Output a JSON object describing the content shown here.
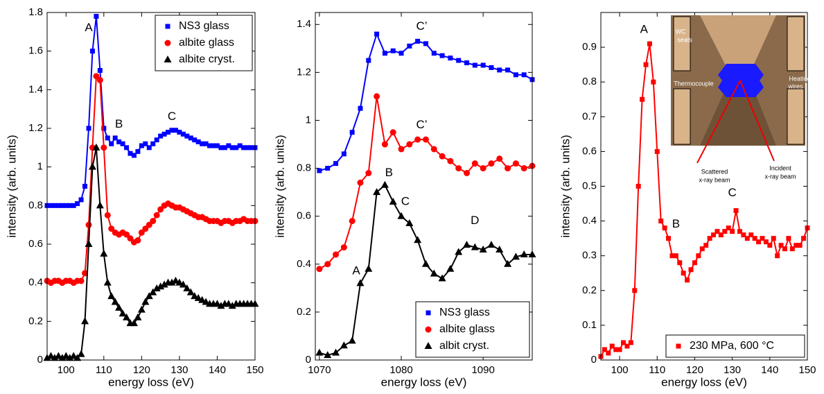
{
  "chart_data": [
    {
      "type": "line",
      "xlabel": "energy loss (eV)",
      "ylabel": "intensity (arb. units)",
      "xlim": [
        95,
        150
      ],
      "xticks": [
        100,
        110,
        120,
        130,
        140,
        150
      ],
      "ylim": [
        0,
        1.8
      ],
      "yticks": [
        0,
        0.2,
        0.4,
        0.6,
        0.8,
        1,
        1.2,
        1.4,
        1.6,
        1.8
      ],
      "legend": "upper right",
      "annotations": [
        "A",
        "B",
        "C"
      ],
      "x": [
        95,
        96,
        97,
        98,
        99,
        100,
        101,
        102,
        103,
        104,
        105,
        106,
        107,
        108,
        109,
        110,
        111,
        112,
        113,
        114,
        115,
        116,
        117,
        118,
        119,
        120,
        121,
        122,
        123,
        124,
        125,
        126,
        127,
        128,
        129,
        130,
        131,
        132,
        133,
        134,
        135,
        136,
        137,
        138,
        139,
        140,
        141,
        142,
        143,
        144,
        145,
        146,
        147,
        148,
        149,
        150
      ],
      "series": [
        {
          "name": "NS3 glass",
          "color": "#0000ff",
          "marker": "square",
          "values": [
            0.8,
            0.8,
            0.8,
            0.8,
            0.8,
            0.8,
            0.8,
            0.8,
            0.81,
            0.83,
            0.9,
            1.2,
            1.6,
            1.78,
            1.5,
            1.2,
            1.15,
            1.12,
            1.15,
            1.13,
            1.12,
            1.1,
            1.07,
            1.06,
            1.08,
            1.11,
            1.12,
            1.1,
            1.12,
            1.14,
            1.16,
            1.17,
            1.18,
            1.19,
            1.19,
            1.18,
            1.17,
            1.16,
            1.15,
            1.14,
            1.13,
            1.12,
            1.12,
            1.11,
            1.11,
            1.11,
            1.1,
            1.1,
            1.11,
            1.1,
            1.1,
            1.11,
            1.1,
            1.1,
            1.1,
            1.1
          ]
        },
        {
          "name": "albite glass",
          "color": "#ff0000",
          "marker": "circle",
          "values": [
            0.41,
            0.4,
            0.41,
            0.41,
            0.4,
            0.41,
            0.41,
            0.4,
            0.41,
            0.41,
            0.45,
            0.7,
            1.1,
            1.47,
            1.45,
            1.1,
            0.75,
            0.68,
            0.66,
            0.65,
            0.66,
            0.65,
            0.63,
            0.61,
            0.62,
            0.66,
            0.68,
            0.7,
            0.72,
            0.75,
            0.78,
            0.8,
            0.81,
            0.8,
            0.79,
            0.79,
            0.78,
            0.77,
            0.76,
            0.75,
            0.74,
            0.74,
            0.73,
            0.72,
            0.72,
            0.72,
            0.71,
            0.72,
            0.72,
            0.71,
            0.72,
            0.72,
            0.73,
            0.72,
            0.72,
            0.72
          ]
        },
        {
          "name": "albite cryst.",
          "color": "#000000",
          "marker": "triangle",
          "values": [
            0.01,
            0.02,
            0.01,
            0.02,
            0.01,
            0.02,
            0.01,
            0.02,
            0.01,
            0.03,
            0.2,
            0.6,
            1.0,
            1.1,
            0.8,
            0.55,
            0.4,
            0.33,
            0.3,
            0.27,
            0.24,
            0.22,
            0.19,
            0.19,
            0.22,
            0.26,
            0.3,
            0.33,
            0.35,
            0.37,
            0.38,
            0.39,
            0.4,
            0.4,
            0.41,
            0.4,
            0.39,
            0.37,
            0.35,
            0.33,
            0.32,
            0.31,
            0.3,
            0.29,
            0.29,
            0.29,
            0.28,
            0.29,
            0.29,
            0.28,
            0.29,
            0.29,
            0.29,
            0.29,
            0.29,
            0.29
          ]
        }
      ]
    },
    {
      "type": "line",
      "xlabel": "energy loss (eV)",
      "ylabel": "intensity (arb. units)",
      "xlim": [
        1069.5,
        1096
      ],
      "xticks": [
        1070,
        1080,
        1090
      ],
      "ylim": [
        0,
        1.45
      ],
      "yticks": [
        0,
        0.2,
        0.4,
        0.6,
        0.8,
        1,
        1.2,
        1.4
      ],
      "legend": "lower right",
      "annotations": [
        "C’",
        "C’",
        "B",
        "C",
        "D",
        "A"
      ],
      "x": [
        1070,
        1071,
        1072,
        1073,
        1074,
        1075,
        1076,
        1077,
        1078,
        1079,
        1080,
        1081,
        1082,
        1083,
        1084,
        1085,
        1086,
        1087,
        1088,
        1089,
        1090,
        1091,
        1092,
        1093,
        1094,
        1095,
        1096
      ],
      "series": [
        {
          "name": "NS3 glass",
          "color": "#0000ff",
          "marker": "square",
          "values": [
            0.79,
            0.8,
            0.82,
            0.86,
            0.95,
            1.05,
            1.25,
            1.36,
            1.28,
            1.29,
            1.28,
            1.31,
            1.33,
            1.32,
            1.28,
            1.27,
            1.26,
            1.25,
            1.24,
            1.23,
            1.23,
            1.22,
            1.21,
            1.21,
            1.19,
            1.19,
            1.17
          ]
        },
        {
          "name": "albite glass",
          "color": "#ff0000",
          "marker": "circle",
          "values": [
            0.38,
            0.4,
            0.44,
            0.47,
            0.58,
            0.74,
            0.78,
            1.1,
            0.9,
            0.95,
            0.88,
            0.9,
            0.92,
            0.92,
            0.88,
            0.85,
            0.83,
            0.8,
            0.78,
            0.82,
            0.8,
            0.82,
            0.84,
            0.8,
            0.82,
            0.8,
            0.81
          ]
        },
        {
          "name": "albit cryst.",
          "color": "#000000",
          "marker": "triangle",
          "values": [
            0.03,
            0.02,
            0.03,
            0.06,
            0.08,
            0.32,
            0.38,
            0.7,
            0.73,
            0.66,
            0.6,
            0.57,
            0.5,
            0.4,
            0.36,
            0.34,
            0.38,
            0.45,
            0.48,
            0.47,
            0.46,
            0.48,
            0.46,
            0.4,
            0.43,
            0.44,
            0.44
          ]
        }
      ]
    },
    {
      "type": "line",
      "xlabel": "energy loss (eV)",
      "ylabel": "intensity (arb. units)",
      "xlim": [
        95,
        150
      ],
      "xticks": [
        100,
        110,
        120,
        130,
        140,
        150
      ],
      "ylim": [
        0,
        1
      ],
      "yticks": [
        0,
        0.1,
        0.2,
        0.3,
        0.4,
        0.5,
        0.6,
        0.7,
        0.8,
        0.9
      ],
      "legend": "lower right",
      "annotations": [
        "A",
        "B",
        "C"
      ],
      "inset_labels": [
        "WC",
        "seats",
        "Thermocouple",
        "Heating",
        "wires",
        "Scattered",
        "x-ray beam",
        "Incident",
        "x-ray beam"
      ],
      "x": [
        95,
        96,
        97,
        98,
        99,
        100,
        101,
        102,
        103,
        104,
        105,
        106,
        107,
        108,
        109,
        110,
        111,
        112,
        113,
        114,
        115,
        116,
        117,
        118,
        119,
        120,
        121,
        122,
        123,
        124,
        125,
        126,
        127,
        128,
        129,
        130,
        131,
        132,
        133,
        134,
        135,
        136,
        137,
        138,
        139,
        140,
        141,
        142,
        143,
        144,
        145,
        146,
        147,
        148,
        149,
        150
      ],
      "series": [
        {
          "name": "230 MPa, 600 °C",
          "color": "#ff0000",
          "marker": "square",
          "values": [
            0.01,
            0.03,
            0.02,
            0.04,
            0.03,
            0.03,
            0.05,
            0.04,
            0.05,
            0.2,
            0.5,
            0.75,
            0.85,
            0.91,
            0.8,
            0.6,
            0.4,
            0.38,
            0.35,
            0.3,
            0.3,
            0.28,
            0.25,
            0.23,
            0.26,
            0.28,
            0.3,
            0.32,
            0.33,
            0.35,
            0.36,
            0.37,
            0.36,
            0.37,
            0.38,
            0.37,
            0.43,
            0.37,
            0.36,
            0.35,
            0.36,
            0.35,
            0.34,
            0.35,
            0.34,
            0.33,
            0.35,
            0.3,
            0.33,
            0.32,
            0.35,
            0.32,
            0.33,
            0.33,
            0.35,
            0.38
          ]
        }
      ]
    }
  ]
}
